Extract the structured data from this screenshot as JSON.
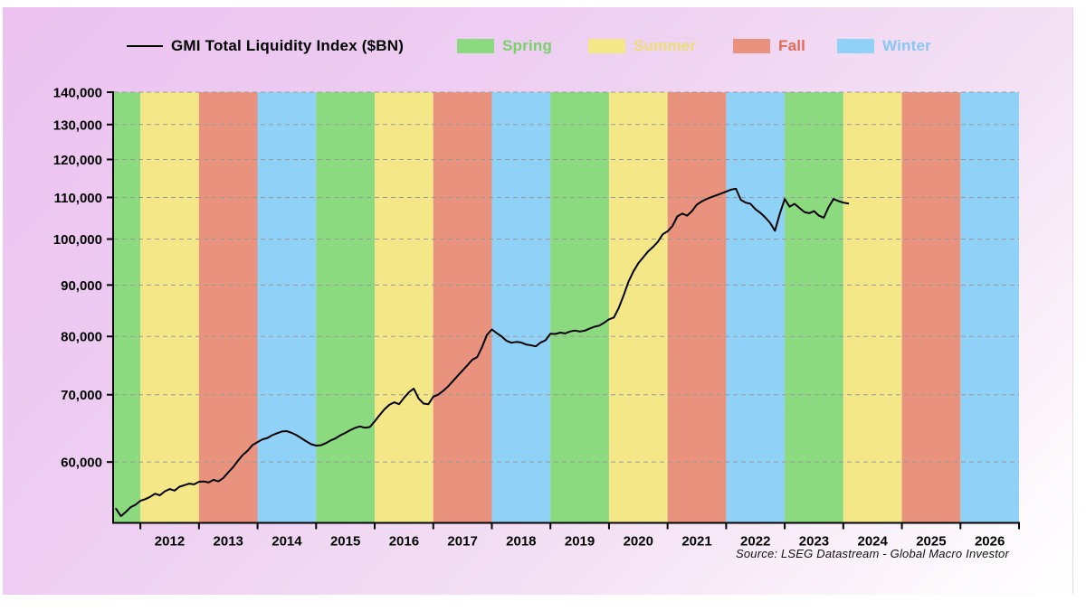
{
  "legend": {
    "series_label": "GMI Total Liquidity Index ($BN)",
    "seasons": [
      {
        "label": "Spring",
        "band_color": "#8cda7f",
        "text_color": "#79d169"
      },
      {
        "label": "Summer",
        "band_color": "#f4e787",
        "text_color": "#ecdd74"
      },
      {
        "label": "Fall",
        "band_color": "#e9937f",
        "text_color": "#e16c55"
      },
      {
        "label": "Winter",
        "band_color": "#90d2f7",
        "text_color": "#87c8f3"
      }
    ]
  },
  "source_note": "Source: LSEG Datastream - Global Macro Investor",
  "chart_data": {
    "type": "line",
    "title": "GMI Total Liquidity Index ($BN)",
    "y_scale": "log",
    "ylim": [
      52300,
      140000
    ],
    "yticks": [
      60000,
      70000,
      80000,
      90000,
      100000,
      110000,
      120000,
      130000,
      140000
    ],
    "ytick_labels": [
      "60,000",
      "70,000",
      "80,000",
      "90,000",
      "100,000",
      "110,000",
      "120,000",
      "130,000",
      "140,000"
    ],
    "x_domain": [
      2011.55,
      2027.0
    ],
    "year_labels": [
      "2012",
      "2013",
      "2014",
      "2015",
      "2016",
      "2017",
      "2018",
      "2019",
      "2020",
      "2021",
      "2022",
      "2023",
      "2024",
      "2025",
      "2026"
    ],
    "season_bands": [
      {
        "year": 2011,
        "season": "Spring"
      },
      {
        "year": 2012,
        "season": "Summer"
      },
      {
        "year": 2013,
        "season": "Fall"
      },
      {
        "year": 2014,
        "season": "Winter"
      },
      {
        "year": 2015,
        "season": "Spring"
      },
      {
        "year": 2016,
        "season": "Summer"
      },
      {
        "year": 2017,
        "season": "Fall"
      },
      {
        "year": 2018,
        "season": "Winter"
      },
      {
        "year": 2019,
        "season": "Spring"
      },
      {
        "year": 2020,
        "season": "Summer"
      },
      {
        "year": 2021,
        "season": "Fall"
      },
      {
        "year": 2022,
        "season": "Winter"
      },
      {
        "year": 2023,
        "season": "Spring"
      },
      {
        "year": 2024,
        "season": "Summer"
      },
      {
        "year": 2025,
        "season": "Fall"
      },
      {
        "year": 2026,
        "season": "Winter"
      }
    ],
    "grid": "horizontal-dashed",
    "grid_color": "#999999",
    "axis_color": "#000000",
    "legend_position": "top",
    "series": [
      {
        "name": "GMI Total Liquidity Index ($BN)",
        "color": "#000000",
        "start_month": "2011-08",
        "frequency": "monthly",
        "values": [
          53900,
          53000,
          53500,
          54100,
          54400,
          54900,
          55100,
          55400,
          55800,
          55600,
          56100,
          56400,
          56200,
          56700,
          56900,
          57100,
          57000,
          57350,
          57400,
          57250,
          57600,
          57400,
          57850,
          58600,
          59300,
          60200,
          61000,
          61600,
          62400,
          62800,
          63200,
          63400,
          63800,
          64100,
          64350,
          64400,
          64150,
          63800,
          63350,
          62900,
          62500,
          62300,
          62350,
          62650,
          63050,
          63350,
          63800,
          64150,
          64550,
          64900,
          65100,
          64900,
          65000,
          65850,
          66800,
          67700,
          68400,
          68800,
          68500,
          69500,
          70400,
          71000,
          69400,
          68600,
          68500,
          69700,
          70000,
          70600,
          71300,
          72200,
          73100,
          74000,
          74900,
          75850,
          76300,
          78100,
          80300,
          81300,
          80600,
          80000,
          79200,
          78850,
          79000,
          78900,
          78550,
          78400,
          78200,
          78900,
          79300,
          80500,
          80450,
          80700,
          80550,
          80900,
          81100,
          80900,
          81050,
          81450,
          81800,
          82000,
          82550,
          83200,
          83550,
          85400,
          87900,
          90700,
          92850,
          94600,
          95900,
          97200,
          98200,
          99350,
          101100,
          101800,
          103000,
          105300,
          106000,
          105500,
          106600,
          108200,
          109000,
          109600,
          110100,
          110550,
          111000,
          111500,
          112000,
          112200,
          109400,
          108700,
          108400,
          107100,
          106200,
          105100,
          103800,
          101900,
          106000,
          109600,
          107700,
          108400,
          107400,
          106400,
          106100,
          106600,
          105500,
          105000,
          107600,
          109600,
          109100,
          108700,
          108500
        ]
      }
    ]
  }
}
